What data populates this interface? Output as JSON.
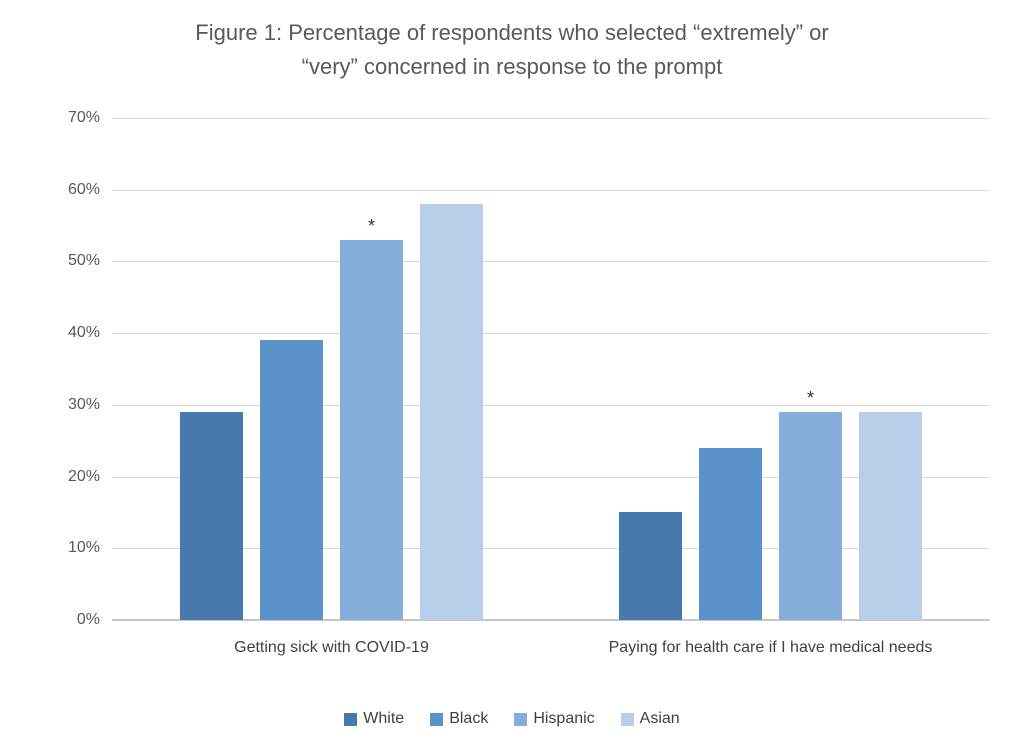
{
  "chart_data": {
    "type": "bar",
    "title": "Figure 1: Percentage of respondents who selected “extremely” or “very” concerned in response to the prompt",
    "title_lines": [
      "Figure 1: Percentage of respondents who selected “extremely” or",
      "“very” concerned in response to the prompt"
    ],
    "categories": [
      "Getting sick with COVID-19",
      "Paying for health care if I have medical needs"
    ],
    "series": [
      {
        "name": "White",
        "color": "#4679AC",
        "values": [
          29,
          15
        ]
      },
      {
        "name": "Black",
        "color": "#5B92CA",
        "values": [
          39,
          24
        ]
      },
      {
        "name": "Hispanic",
        "color": "#86ADDC",
        "values": [
          53,
          29
        ]
      },
      {
        "name": "Asian",
        "color": "#B9CEE8",
        "values": [
          58,
          29
        ]
      }
    ],
    "annotations": [
      {
        "text": "*",
        "series": "Hispanic",
        "category_index": 0,
        "value": 53
      },
      {
        "text": "*",
        "series": "Hispanic",
        "category_index": 1,
        "value": 29
      }
    ],
    "xlabel": "",
    "ylabel": "",
    "ylim": [
      0,
      70
    ],
    "yticks": [
      0,
      10,
      20,
      30,
      40,
      50,
      60,
      70
    ],
    "ytick_labels": [
      "0%",
      "10%",
      "20%",
      "30%",
      "40%",
      "50%",
      "60%",
      "70%"
    ],
    "grid": true,
    "legend_position": "bottom",
    "legend_entries": [
      "White",
      "Black",
      "Hispanic",
      "Asian"
    ],
    "colors": {
      "gridline": "#D9D9D9",
      "axis_line": "#C3C6CB",
      "title_text": "#595959",
      "axis_text": "#595959",
      "label_text": "#404040",
      "annotation_text": "#333333",
      "background": "#FFFFFF"
    }
  }
}
